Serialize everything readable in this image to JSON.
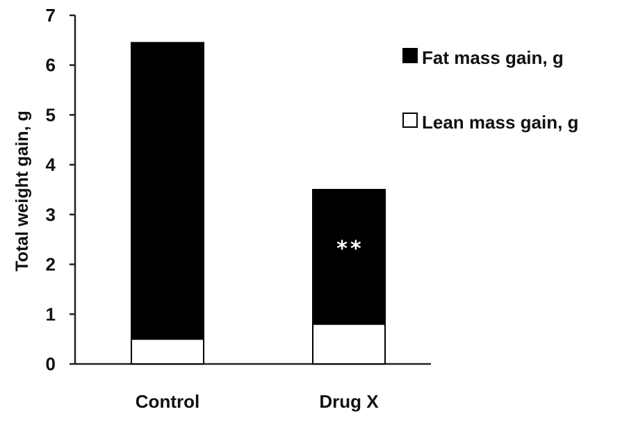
{
  "chart_data": {
    "type": "bar",
    "stacked": true,
    "categories": [
      "Control",
      "Drug X"
    ],
    "series": [
      {
        "name": "Lean mass gain, g",
        "values": [
          0.5,
          0.8
        ],
        "color": "#ffffff"
      },
      {
        "name": "Fat mass gain, g",
        "values": [
          5.95,
          2.7
        ],
        "color": "#000000"
      }
    ],
    "ylabel": "Total  weight  gain, g",
    "xlabel": "",
    "ylim": [
      0,
      7
    ],
    "yticks": [
      "0",
      "1",
      "2",
      "3",
      "4",
      "5",
      "6",
      "7"
    ],
    "legend_position": "top-right",
    "legend": [
      "Fat mass gain, g",
      "Lean mass gain, g"
    ],
    "annotations": [
      {
        "category": "Drug X",
        "text": "**"
      }
    ],
    "grid": false
  }
}
